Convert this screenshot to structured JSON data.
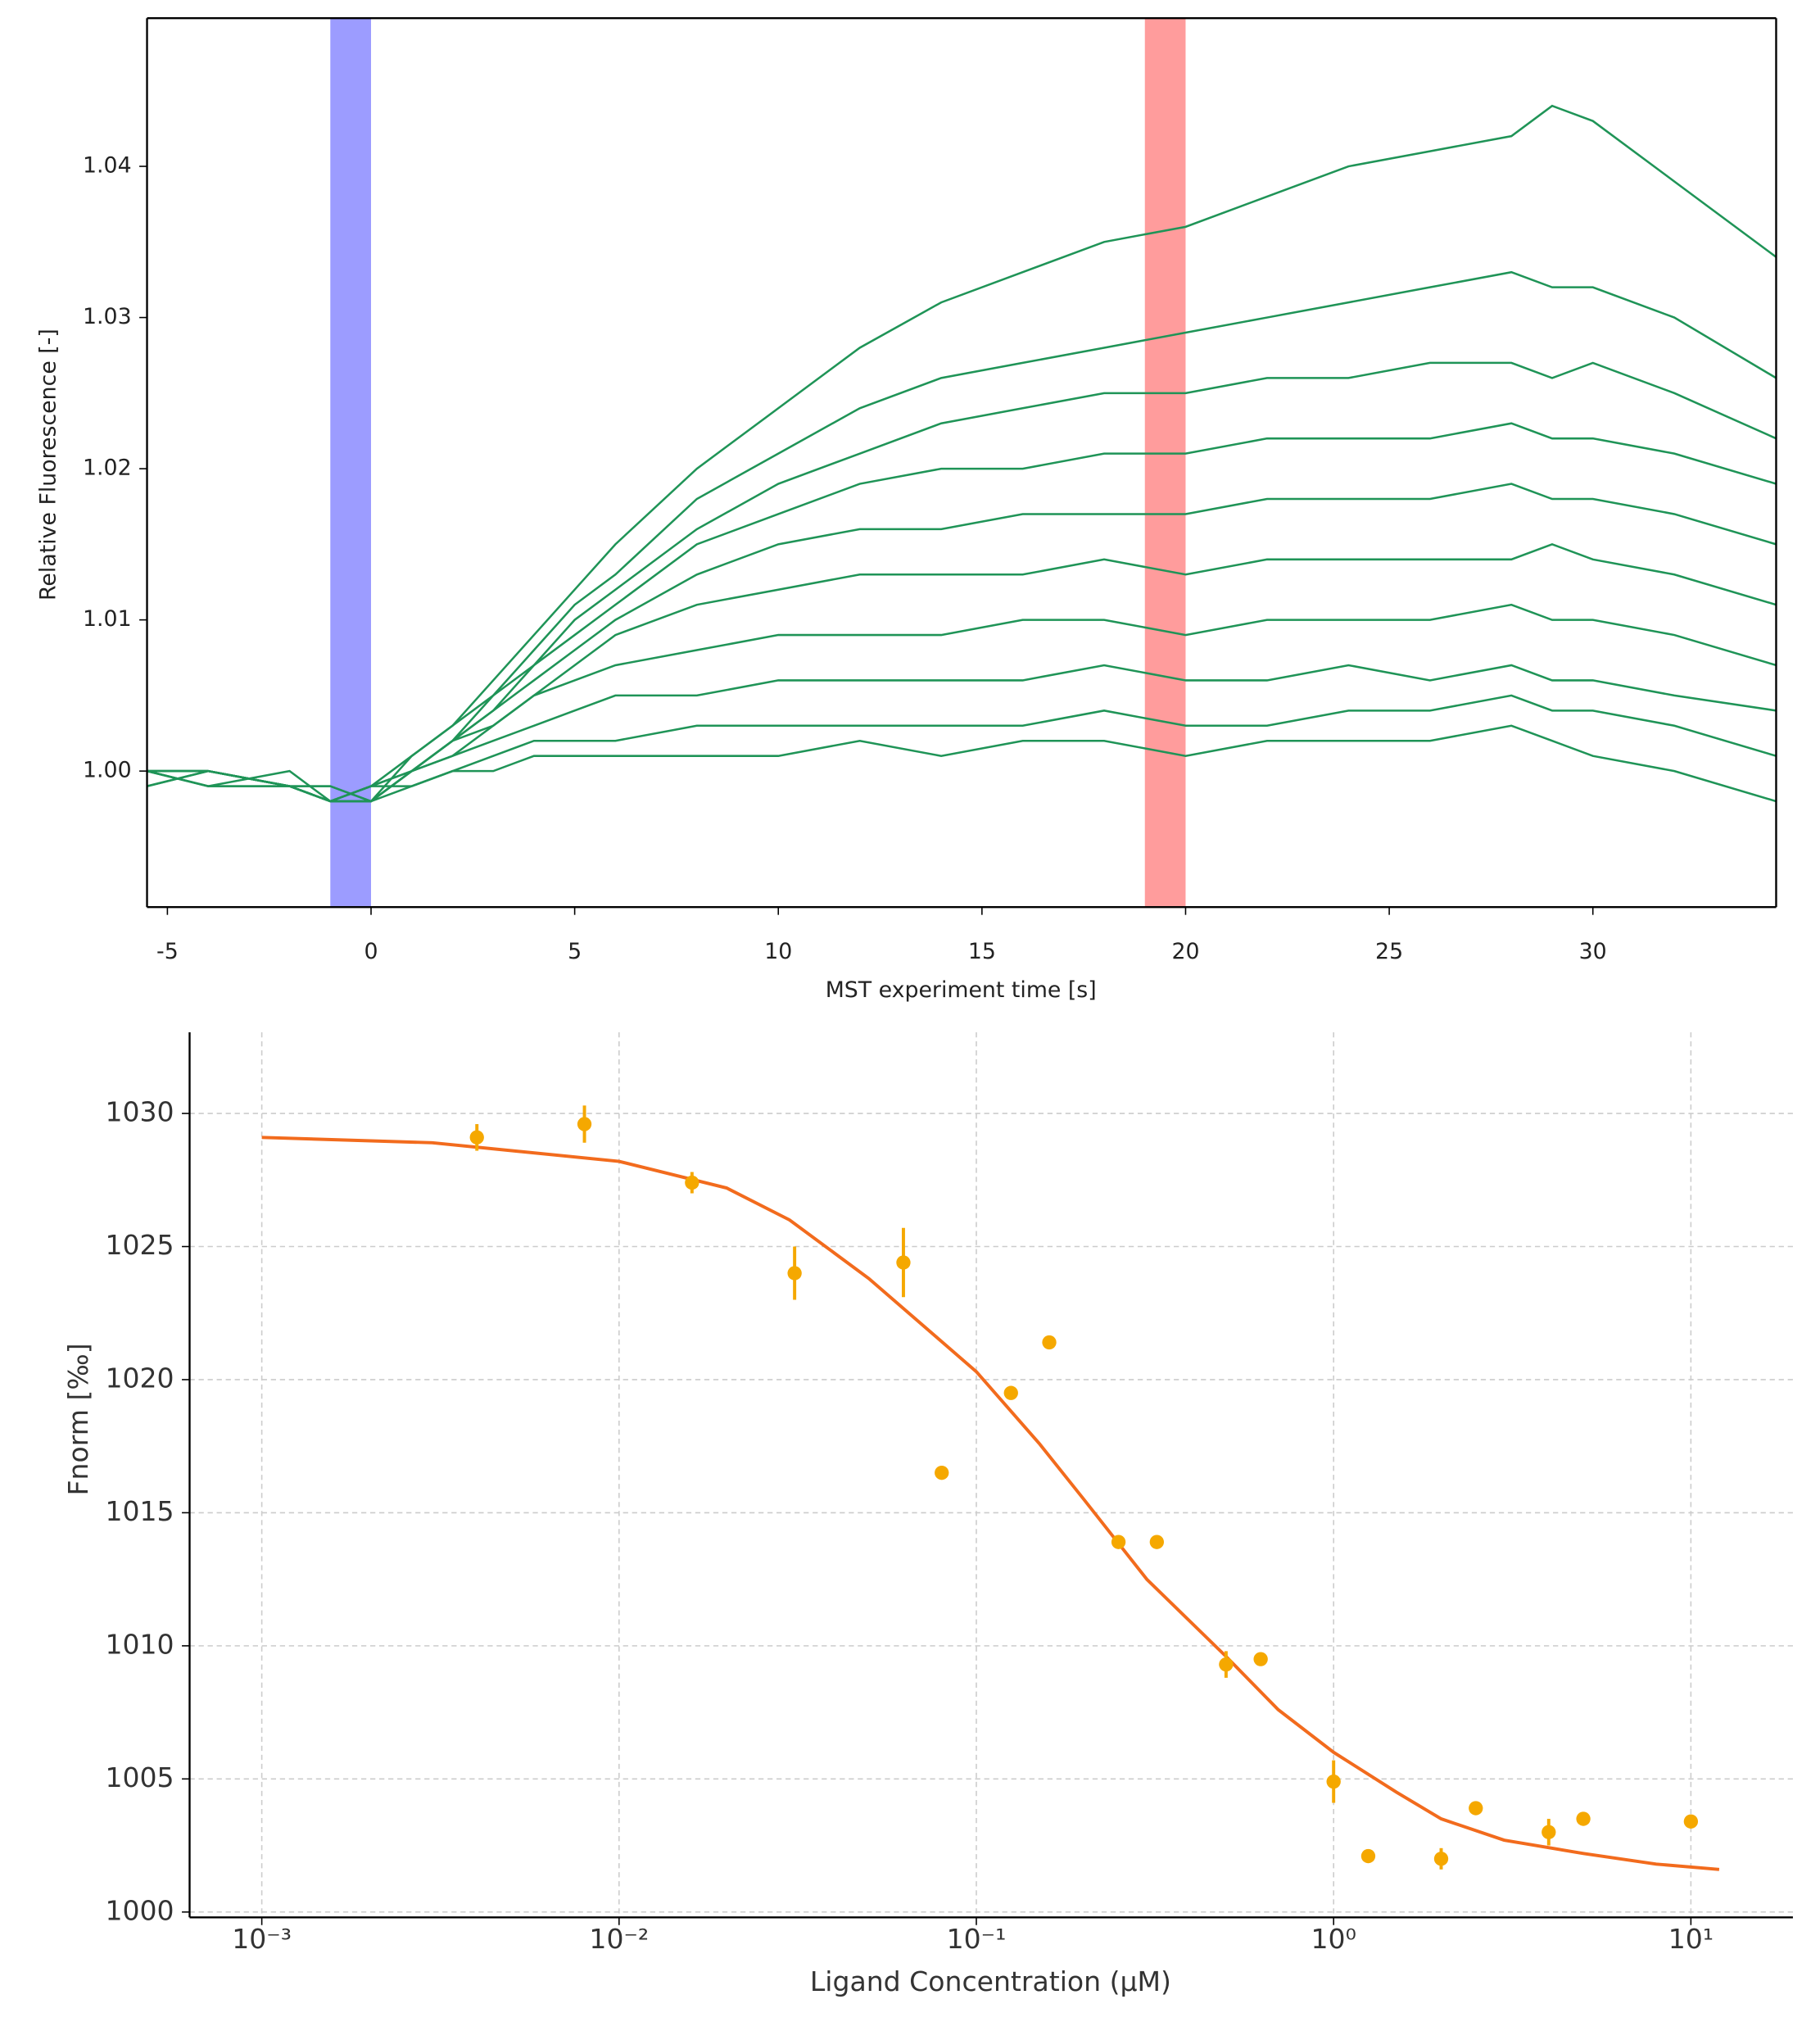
{
  "chart_data": [
    {
      "type": "line",
      "xlabel": "MST experiment time [s]",
      "ylabel": "Relative Fluorescence [-]",
      "xlim": [
        -5.5,
        34.5
      ],
      "ylim": [
        0.991,
        1.0498
      ],
      "xticks": [
        -5,
        0,
        5,
        10,
        15,
        20,
        25,
        30
      ],
      "yticks": [
        {
          "value": 1.0,
          "label": "1.00"
        },
        {
          "value": 1.01,
          "label": "1.01"
        },
        {
          "value": 1.02,
          "label": "1.02"
        },
        {
          "value": 1.03,
          "label": "1.03"
        },
        {
          "value": 1.04,
          "label": "1.04"
        }
      ],
      "regions": [
        {
          "x": [
            -1,
            0
          ],
          "color": "#9c9cff"
        },
        {
          "x": [
            19,
            20
          ],
          "color": "#ff9c9c"
        }
      ],
      "x": [
        -5.5,
        -4,
        -2,
        -1,
        0,
        1,
        2,
        3,
        4,
        5,
        6,
        8,
        10,
        12,
        14,
        16,
        18,
        20,
        22,
        24,
        26,
        28,
        29,
        30,
        32,
        34.5
      ],
      "series": [
        {
          "color": "#1f9457",
          "values": [
            1.0,
            1.0,
            0.999,
            0.998,
            0.999,
            1.001,
            1.003,
            1.006,
            1.009,
            1.012,
            1.015,
            1.02,
            1.024,
            1.028,
            1.031,
            1.033,
            1.035,
            1.036,
            1.038,
            1.04,
            1.041,
            1.042,
            1.044,
            1.043,
            1.039,
            1.034
          ]
        },
        {
          "color": "#1f9457",
          "values": [
            1.0,
            0.999,
            0.999,
            0.998,
            0.998,
            1.001,
            1.003,
            1.005,
            1.008,
            1.011,
            1.013,
            1.018,
            1.021,
            1.024,
            1.026,
            1.027,
            1.028,
            1.029,
            1.03,
            1.031,
            1.032,
            1.033,
            1.032,
            1.032,
            1.03,
            1.026
          ]
        },
        {
          "color": "#1f9457",
          "values": [
            0.999,
            1.0,
            0.999,
            0.998,
            0.999,
            1.0,
            1.002,
            1.005,
            1.007,
            1.01,
            1.012,
            1.016,
            1.019,
            1.021,
            1.023,
            1.024,
            1.025,
            1.025,
            1.026,
            1.026,
            1.027,
            1.027,
            1.026,
            1.027,
            1.025,
            1.022
          ]
        },
        {
          "color": "#1f9457",
          "values": [
            1.0,
            1.0,
            0.999,
            0.999,
            0.998,
            1.0,
            1.002,
            1.004,
            1.007,
            1.009,
            1.011,
            1.015,
            1.017,
            1.019,
            1.02,
            1.02,
            1.021,
            1.021,
            1.022,
            1.022,
            1.022,
            1.023,
            1.022,
            1.022,
            1.021,
            1.019
          ]
        },
        {
          "color": "#1f9457",
          "values": [
            1.0,
            0.999,
            1.0,
            0.998,
            0.998,
            1.0,
            1.002,
            1.004,
            1.006,
            1.008,
            1.01,
            1.013,
            1.015,
            1.016,
            1.016,
            1.017,
            1.017,
            1.017,
            1.018,
            1.018,
            1.018,
            1.019,
            1.018,
            1.018,
            1.017,
            1.015
          ]
        },
        {
          "color": "#1f9457",
          "values": [
            1.0,
            1.0,
            0.999,
            0.998,
            0.999,
            1.0,
            1.002,
            1.003,
            1.005,
            1.007,
            1.009,
            1.011,
            1.012,
            1.013,
            1.013,
            1.013,
            1.014,
            1.013,
            1.014,
            1.014,
            1.014,
            1.014,
            1.015,
            1.014,
            1.013,
            1.011
          ]
        },
        {
          "color": "#1f9457",
          "values": [
            0.999,
            1.0,
            0.999,
            0.998,
            0.998,
            1.0,
            1.001,
            1.003,
            1.005,
            1.006,
            1.007,
            1.008,
            1.009,
            1.009,
            1.009,
            1.01,
            1.01,
            1.009,
            1.01,
            1.01,
            1.01,
            1.011,
            1.01,
            1.01,
            1.009,
            1.007
          ]
        },
        {
          "color": "#1f9457",
          "values": [
            1.0,
            1.0,
            0.999,
            0.999,
            0.998,
            1.0,
            1.001,
            1.002,
            1.003,
            1.004,
            1.005,
            1.005,
            1.006,
            1.006,
            1.006,
            1.006,
            1.007,
            1.006,
            1.006,
            1.007,
            1.006,
            1.007,
            1.006,
            1.006,
            1.005,
            1.004
          ]
        },
        {
          "color": "#1f9457",
          "values": [
            1.0,
            0.999,
            0.999,
            0.998,
            0.998,
            0.999,
            1.0,
            1.001,
            1.002,
            1.002,
            1.002,
            1.003,
            1.003,
            1.003,
            1.003,
            1.003,
            1.004,
            1.003,
            1.003,
            1.004,
            1.004,
            1.005,
            1.004,
            1.004,
            1.003,
            1.001
          ]
        },
        {
          "color": "#1f9457",
          "values": [
            1.0,
            1.0,
            0.999,
            0.998,
            0.999,
            0.999,
            1.0,
            1.0,
            1.001,
            1.001,
            1.001,
            1.001,
            1.001,
            1.002,
            1.001,
            1.002,
            1.002,
            1.001,
            1.002,
            1.002,
            1.002,
            1.003,
            1.002,
            1.001,
            1.0,
            0.998
          ]
        }
      ]
    },
    {
      "type": "scatter",
      "xlabel": "Ligand Concentration (μM)",
      "ylabel": "Fnorm [‰]",
      "xscale": "log",
      "grid": true,
      "xlim": [
        0.000628,
        19.3
      ],
      "ylim": [
        999.8,
        1033.05
      ],
      "xticks": [
        {
          "value": 0.001,
          "label": "10⁻³"
        },
        {
          "value": 0.01,
          "label": "10⁻²"
        },
        {
          "value": 0.1,
          "label": "10⁻¹"
        },
        {
          "value": 1,
          "label": "10⁰"
        },
        {
          "value": 10,
          "label": "10¹"
        }
      ],
      "yticks": [
        1000,
        1005,
        1010,
        1015,
        1020,
        1025,
        1030
      ],
      "color": "#f5a800",
      "x": [
        0.004,
        0.008,
        0.016,
        0.031,
        0.0625,
        0.08,
        0.125,
        0.16,
        0.25,
        0.32,
        0.5,
        0.625,
        1.0,
        1.25,
        2.0,
        2.5,
        4.0,
        5.0,
        10
      ],
      "values": [
        1029.1,
        1029.6,
        1027.4,
        1024.0,
        1024.4,
        1016.5,
        1019.5,
        1021.4,
        1013.9,
        1013.9,
        1009.3,
        1009.5,
        1004.9,
        1002.1,
        1002.0,
        1003.9,
        1003.0,
        1003.5,
        1003.4
      ],
      "errors": [
        0.5,
        0.7,
        0.4,
        1.0,
        1.3,
        0.2,
        0.2,
        0.2,
        0.2,
        0.2,
        0.5,
        0.2,
        0.8,
        0.2,
        0.4,
        0.2,
        0.5,
        0.2,
        0.2
      ],
      "fit": {
        "color": "#f26b1d",
        "x": [
          0.001,
          0.003,
          0.01,
          0.02,
          0.03,
          0.05,
          0.1,
          0.15,
          0.2,
          0.3,
          0.5,
          0.7,
          1,
          1.5,
          2,
          3,
          5,
          8,
          12
        ],
        "values": [
          1029.1,
          1028.9,
          1028.2,
          1027.2,
          1026.0,
          1023.8,
          1020.3,
          1017.6,
          1015.5,
          1012.5,
          1009.6,
          1007.6,
          1006.0,
          1004.5,
          1003.5,
          1002.7,
          1002.2,
          1001.8,
          1001.6
        ]
      }
    }
  ]
}
